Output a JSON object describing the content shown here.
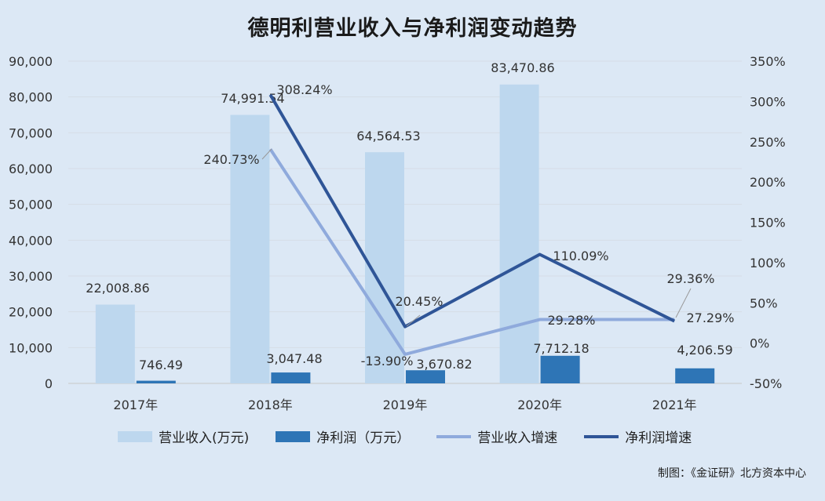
{
  "title": "德明利营业收入与净利润变动趋势",
  "credit": "制图：《金证研》北方资本中心",
  "colors": {
    "revenue_bar": "#bdd7ee",
    "profit_bar": "#2e75b6",
    "revenue_growth_line": "#8faadc",
    "profit_growth_line": "#2f5597"
  },
  "chart_data": {
    "type": "bar",
    "categories": [
      "2017年",
      "2018年",
      "2019年",
      "2020年",
      "2021年"
    ],
    "series": [
      {
        "name": "营业收入(万元)",
        "type": "bar",
        "axis": "left",
        "values": [
          22008.86,
          74991.54,
          64564.53,
          83470.86,
          null
        ],
        "labels": [
          "22,008.86",
          "74,991.54",
          "64,564.53",
          "83,470.86",
          ""
        ]
      },
      {
        "name": "净利润（万元）",
        "type": "bar",
        "axis": "left",
        "values": [
          746.49,
          3047.48,
          3670.82,
          7712.18,
          4206.59
        ],
        "labels": [
          "746.49",
          "3,047.48",
          "3,670.82",
          "7,712.18",
          "4,206.59"
        ]
      },
      {
        "name": "营业收入增速",
        "type": "line",
        "axis": "right",
        "values": [
          null,
          240.73,
          -13.9,
          29.28,
          29.36
        ],
        "labels": [
          "",
          "240.73%",
          "-13.90%",
          "29.28%",
          "29.36%"
        ]
      },
      {
        "name": "净利润增速",
        "type": "line",
        "axis": "right",
        "values": [
          null,
          308.24,
          20.45,
          110.09,
          27.29
        ],
        "labels": [
          "",
          "308.24%",
          "20.45%",
          "110.09%",
          "27.29%"
        ]
      }
    ],
    "y_left": {
      "range": [
        0,
        90000
      ],
      "ticks": [
        "0",
        "10,000",
        "20,000",
        "30,000",
        "40,000",
        "50,000",
        "60,000",
        "70,000",
        "80,000",
        "90,000"
      ]
    },
    "y_right": {
      "range": [
        -50,
        350
      ],
      "ticks": [
        "-50%",
        "0%",
        "50%",
        "100%",
        "150%",
        "200%",
        "250%",
        "300%",
        "350%"
      ]
    },
    "grid": true,
    "legend": "bottom"
  }
}
